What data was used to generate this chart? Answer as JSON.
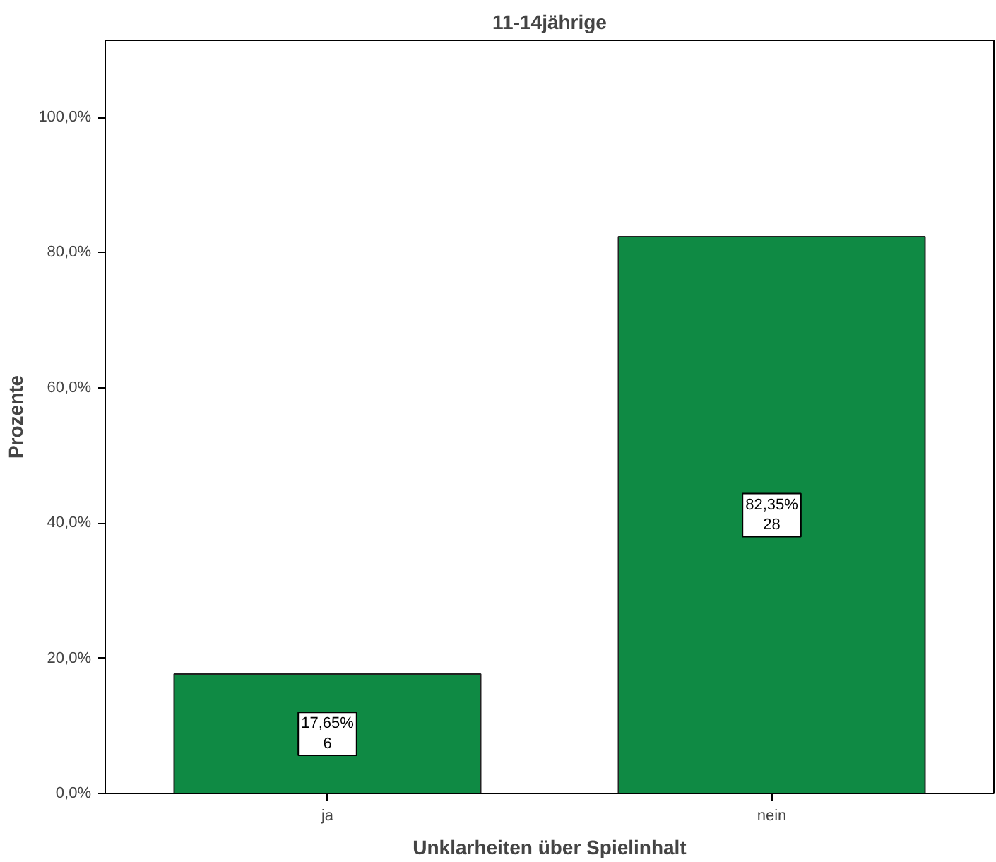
{
  "chart_data": {
    "type": "bar",
    "title": "11-14jährige",
    "xlabel": "Unklarheiten über Spielinhalt",
    "ylabel": "Prozente",
    "categories": [
      "ja",
      "nein"
    ],
    "values": [
      17.65,
      82.35
    ],
    "value_labels": [
      "17,65%\n6",
      "82,35%\n28"
    ],
    "color": "#0f8a44",
    "ylim": [
      0,
      111.4
    ],
    "yticks": [
      {
        "value": 0,
        "label": "0,0%"
      },
      {
        "value": 20,
        "label": "20,0%"
      },
      {
        "value": 40,
        "label": "40,0%"
      },
      {
        "value": 60,
        "label": "60,0%"
      },
      {
        "value": 80,
        "label": "80,0%"
      },
      {
        "value": 100,
        "label": "100,0%"
      }
    ]
  }
}
